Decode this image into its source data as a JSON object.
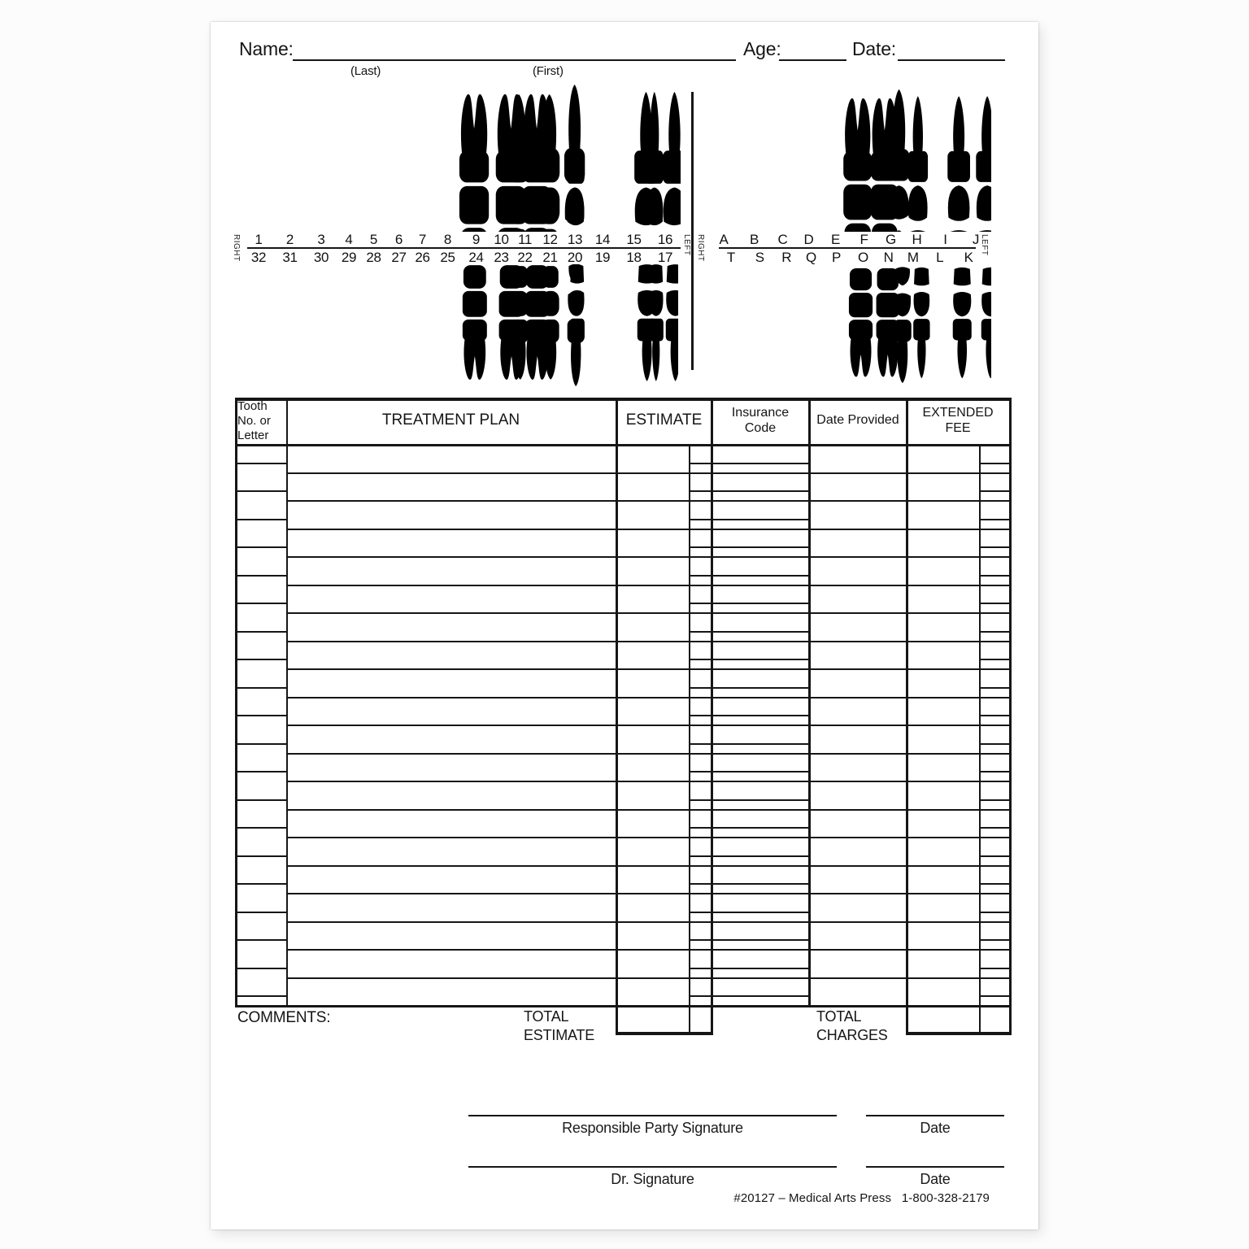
{
  "header": {
    "name_label": "Name:",
    "last_label": "(Last)",
    "first_label": "(First)",
    "age_label": "Age:",
    "date_label": "Date:"
  },
  "chart": {
    "adult": {
      "upper_numbers": [
        "1",
        "2",
        "3",
        "4",
        "5",
        "6",
        "7",
        "8",
        "9",
        "10",
        "11",
        "12",
        "13",
        "14",
        "15",
        "16"
      ],
      "lower_numbers": [
        "32",
        "31",
        "30",
        "29",
        "28",
        "27",
        "26",
        "25",
        "24",
        "23",
        "22",
        "21",
        "20",
        "19",
        "18",
        "17"
      ],
      "right_label": "RIGHT",
      "left_label": "LEFT"
    },
    "primary": {
      "upper_letters": [
        "A",
        "B",
        "C",
        "D",
        "E",
        "F",
        "G",
        "H",
        "I",
        "J"
      ],
      "lower_letters": [
        "T",
        "S",
        "R",
        "Q",
        "P",
        "O",
        "N",
        "M",
        "L",
        "K"
      ],
      "right_label": "RIGHT",
      "left_label": "LEFT"
    }
  },
  "table": {
    "col_tooth": "Tooth No. or Letter",
    "col_treatment": "TREATMENT PLAN",
    "col_estimate": "ESTIMATE",
    "col_insurance": "Insurance Code",
    "col_date": "Date Provided",
    "col_fee": "EXTENDED FEE",
    "row_count": 20,
    "comments_label": "COMMENTS:",
    "total_estimate_label": "TOTAL ESTIMATE",
    "total_charges_label": "TOTAL CHARGES"
  },
  "signatures": {
    "responsible_label": "Responsible Party Signature",
    "responsible_date_label": "Date",
    "doctor_label": "Dr. Signature",
    "doctor_date_label": "Date"
  },
  "footer": {
    "text": "#20127 – Medical Arts Press   1-800-328-2179"
  },
  "colors": {
    "ink": "#161616",
    "paper": "#ffffff"
  }
}
